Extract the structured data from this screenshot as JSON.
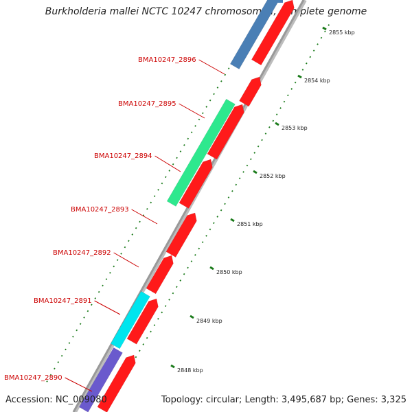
{
  "title": "Burkholderia mallei NCTC 10247 chromosome I, complete genome",
  "accession": "Accession: NC_009080",
  "summary": "Topology: circular; Length: 3,495,687 bp; Genes: 3,325",
  "colors": {
    "backbone": "#999999",
    "forward_cds": "#ff1a1a",
    "gene_label": "#cc0000",
    "tick": "#1a7a1a",
    "steelblue_gene": "#4a7fb5",
    "green_gene": "#2ee88e",
    "cyan_gene": "#00e5ee",
    "purple_gene": "#6a5acd"
  },
  "gene_labels": [
    "BMA10247_2896",
    "BMA10247_2895",
    "BMA10247_2894",
    "BMA10247_2893",
    "BMA10247_2892",
    "BMA10247_2891",
    "BMA10247_2890"
  ],
  "ruler_labels": [
    "2855 kbp",
    "2854 kbp",
    "2853 kbp",
    "2852 kbp",
    "2851 kbp",
    "2850 kbp",
    "2849 kbp",
    "2848 kbp"
  ]
}
